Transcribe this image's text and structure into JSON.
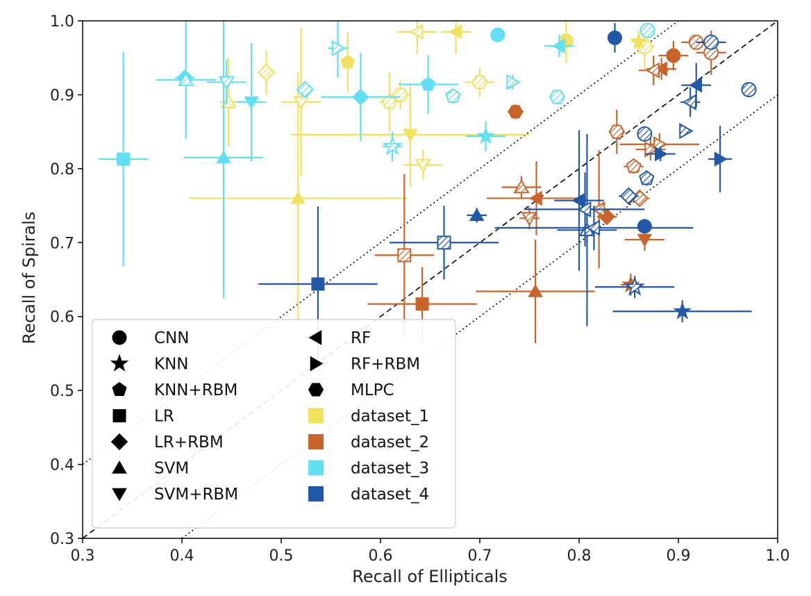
{
  "chart_data": {
    "type": "scatter",
    "title": "",
    "xlabel": "Recall of Ellipticals",
    "ylabel": "Recall of Spirals",
    "xlim": [
      0.3,
      1.0
    ],
    "ylim": [
      0.3,
      1.0
    ],
    "xticks": [
      "0.3",
      "0.4",
      "0.5",
      "0.6",
      "0.7",
      "0.8",
      "0.9",
      "1.0"
    ],
    "yticks": [
      "0.3",
      "0.4",
      "0.5",
      "0.6",
      "0.7",
      "0.8",
      "0.9",
      "1.0"
    ],
    "grid": false,
    "legend_placement": "lower-left",
    "legend_models": [
      {
        "name": "CNN",
        "marker": "circle"
      },
      {
        "name": "KNN",
        "marker": "star"
      },
      {
        "name": "KNN+RBM",
        "marker": "pentagon"
      },
      {
        "name": "LR",
        "marker": "square"
      },
      {
        "name": "LR+RBM",
        "marker": "diamond"
      },
      {
        "name": "SVM",
        "marker": "triangle-up"
      },
      {
        "name": "SVM+RBM",
        "marker": "triangle-down"
      },
      {
        "name": "RF",
        "marker": "triangle-left"
      },
      {
        "name": "RF+RBM",
        "marker": "triangle-right"
      },
      {
        "name": "MLPC",
        "marker": "hexagon"
      }
    ],
    "legend_datasets": [
      {
        "name": "dataset_1",
        "color": "#F2E060"
      },
      {
        "name": "dataset_2",
        "color": "#C8642A"
      },
      {
        "name": "dataset_3",
        "color": "#62DFF3"
      },
      {
        "name": "dataset_4",
        "color": "#2358A8"
      }
    ],
    "reference_lines": [
      {
        "style": "dashed",
        "x": [
          0.3,
          1.0
        ],
        "y": [
          0.3,
          1.0
        ]
      },
      {
        "style": "dotted",
        "x": [
          0.3,
          0.9
        ],
        "y": [
          0.4,
          1.0
        ]
      },
      {
        "style": "dotted",
        "x": [
          0.4,
          1.0
        ],
        "y": [
          0.3,
          0.9
        ]
      }
    ],
    "points": [
      {
        "dataset": "dataset_1",
        "model": "CNN",
        "hatched": false,
        "x": 0.787,
        "y": 0.973,
        "xerr": 0.0,
        "yerr": 0.03
      },
      {
        "dataset": "dataset_1",
        "model": "CNN",
        "hatched": true,
        "x": 0.866,
        "y": 0.965,
        "xerr": 0.01,
        "yerr": 0.03
      },
      {
        "dataset": "dataset_1",
        "model": "KNN",
        "hatched": false,
        "x": 0.86,
        "y": 0.972,
        "xerr": 0.008,
        "yerr": 0.015
      },
      {
        "dataset": "dataset_1",
        "model": "KNN+RBM",
        "hatched": false,
        "x": 0.567,
        "y": 0.944,
        "xerr": 0.0,
        "yerr": 0.04
      },
      {
        "dataset": "dataset_1",
        "model": "KNN+RBM",
        "hatched": true,
        "x": 0.609,
        "y": 0.89,
        "xerr": 0.01,
        "yerr": 0.04
      },
      {
        "dataset": "dataset_1",
        "model": "LR+RBM",
        "hatched": true,
        "x": 0.485,
        "y": 0.93,
        "xerr": 0.0,
        "yerr": 0.03
      },
      {
        "dataset": "dataset_1",
        "model": "SVM",
        "hatched": false,
        "x": 0.517,
        "y": 0.76,
        "xerr": 0.11,
        "yerr": 0.17
      },
      {
        "dataset": "dataset_1",
        "model": "SVM",
        "hatched": true,
        "x": 0.447,
        "y": 0.89,
        "xerr": 0.008,
        "yerr": 0.06
      },
      {
        "dataset": "dataset_1",
        "model": "SVM+RBM",
        "hatched": false,
        "x": 0.63,
        "y": 0.846,
        "xerr": 0.12,
        "yerr": 0.07
      },
      {
        "dataset": "dataset_1",
        "model": "SVM+RBM",
        "hatched": true,
        "x": 0.52,
        "y": 0.89,
        "xerr": 0.02,
        "yerr": 0.1
      },
      {
        "dataset": "dataset_1",
        "model": "SVM+RBM",
        "hatched": true,
        "x": 0.643,
        "y": 0.805,
        "xerr": 0.02,
        "yerr": 0.02
      },
      {
        "dataset": "dataset_1",
        "model": "RF",
        "hatched": false,
        "x": 0.676,
        "y": 0.985,
        "xerr": 0.015,
        "yerr": 0.03
      },
      {
        "dataset": "dataset_1",
        "model": "RF",
        "hatched": true,
        "x": 0.637,
        "y": 0.985,
        "xerr": 0.02,
        "yerr": 0.03
      },
      {
        "dataset": "dataset_1",
        "model": "MLPC",
        "hatched": true,
        "x": 0.7,
        "y": 0.917,
        "xerr": 0.015,
        "yerr": 0.02
      },
      {
        "dataset": "dataset_1",
        "model": "MLPC",
        "hatched": true,
        "x": 0.62,
        "y": 0.9,
        "xerr": 0.01,
        "yerr": 0.02
      },
      {
        "dataset": "dataset_2",
        "model": "CNN",
        "hatched": false,
        "x": 0.895,
        "y": 0.953,
        "xerr": 0.015,
        "yerr": 0.02
      },
      {
        "dataset": "dataset_2",
        "model": "CNN",
        "hatched": true,
        "x": 0.933,
        "y": 0.957,
        "xerr": 0.015,
        "yerr": 0.03
      },
      {
        "dataset": "dataset_2",
        "model": "CNN",
        "hatched": true,
        "x": 0.918,
        "y": 0.971,
        "xerr": 0.015,
        "yerr": 0.01
      },
      {
        "dataset": "dataset_2",
        "model": "KNN",
        "hatched": false,
        "x": 0.852,
        "y": 0.643,
        "xerr": 0.01,
        "yerr": 0.015
      },
      {
        "dataset": "dataset_2",
        "model": "KNN+RBM",
        "hatched": true,
        "x": 0.855,
        "y": 0.803,
        "xerr": 0.01,
        "yerr": 0.01
      },
      {
        "dataset": "dataset_2",
        "model": "LR",
        "hatched": false,
        "x": 0.642,
        "y": 0.617,
        "xerr": 0.055,
        "yerr": 0.05
      },
      {
        "dataset": "dataset_2",
        "model": "LR",
        "hatched": true,
        "x": 0.624,
        "y": 0.683,
        "xerr": 0.03,
        "yerr": 0.11
      },
      {
        "dataset": "dataset_2",
        "model": "LR+RBM",
        "hatched": true,
        "x": 0.861,
        "y": 0.76,
        "xerr": 0.01,
        "yerr": 0.01
      },
      {
        "dataset": "dataset_2",
        "model": "LR+RBM",
        "hatched": false,
        "x": 0.828,
        "y": 0.735,
        "xerr": 0.01,
        "yerr": 0.01
      },
      {
        "dataset": "dataset_2",
        "model": "SVM",
        "hatched": false,
        "x": 0.756,
        "y": 0.634,
        "xerr": 0.06,
        "yerr": 0.07
      },
      {
        "dataset": "dataset_2",
        "model": "SVM",
        "hatched": true,
        "x": 0.742,
        "y": 0.775,
        "xerr": 0.02,
        "yerr": 0.015
      },
      {
        "dataset": "dataset_2",
        "model": "SVM+RBM",
        "hatched": false,
        "x": 0.866,
        "y": 0.704,
        "xerr": 0.02,
        "yerr": 0.015
      },
      {
        "dataset": "dataset_2",
        "model": "SVM+RBM",
        "hatched": true,
        "x": 0.75,
        "y": 0.733,
        "xerr": 0.01,
        "yerr": 0.015
      },
      {
        "dataset": "dataset_2",
        "model": "RF",
        "hatched": false,
        "x": 0.883,
        "y": 0.935,
        "xerr": 0.015,
        "yerr": 0.015
      },
      {
        "dataset": "dataset_2",
        "model": "RF",
        "hatched": true,
        "x": 0.875,
        "y": 0.933,
        "xerr": 0.015,
        "yerr": 0.02
      },
      {
        "dataset": "dataset_2",
        "model": "RF",
        "hatched": false,
        "x": 0.757,
        "y": 0.76,
        "xerr": 0.05,
        "yerr": 0.05
      },
      {
        "dataset": "dataset_2",
        "model": "RF",
        "hatched": true,
        "x": 0.82,
        "y": 0.745,
        "xerr": 0.03,
        "yerr": 0.08
      },
      {
        "dataset": "dataset_2",
        "model": "RF+RBM",
        "hatched": true,
        "x": 0.881,
        "y": 0.833,
        "xerr": 0.04,
        "yerr": 0.015
      },
      {
        "dataset": "dataset_2",
        "model": "RF+RBM",
        "hatched": true,
        "x": 0.872,
        "y": 0.826,
        "xerr": 0.015,
        "yerr": 0.015
      },
      {
        "dataset": "dataset_2",
        "model": "MLPC",
        "hatched": false,
        "x": 0.736,
        "y": 0.877,
        "xerr": 0.008,
        "yerr": 0.01
      },
      {
        "dataset": "dataset_2",
        "model": "MLPC",
        "hatched": true,
        "x": 0.838,
        "y": 0.85,
        "xerr": 0.008,
        "yerr": 0.03
      },
      {
        "dataset": "dataset_3",
        "model": "CNN",
        "hatched": false,
        "x": 0.718,
        "y": 0.981,
        "xerr": 0.0,
        "yerr": 0.01
      },
      {
        "dataset": "dataset_3",
        "model": "CNN",
        "hatched": true,
        "x": 0.869,
        "y": 0.987,
        "xerr": 0.005,
        "yerr": 0.01
      },
      {
        "dataset": "dataset_3",
        "model": "KNN",
        "hatched": false,
        "x": 0.706,
        "y": 0.844,
        "xerr": 0.02,
        "yerr": 0.02
      },
      {
        "dataset": "dataset_3",
        "model": "KNN",
        "hatched": true,
        "x": 0.612,
        "y": 0.83,
        "xerr": 0.01,
        "yerr": 0.02
      },
      {
        "dataset": "dataset_3",
        "model": "KNN+RBM",
        "hatched": false,
        "x": 0.648,
        "y": 0.914,
        "xerr": 0.03,
        "yerr": 0.04
      },
      {
        "dataset": "dataset_3",
        "model": "KNN+RBM",
        "hatched": true,
        "x": 0.673,
        "y": 0.898,
        "xerr": 0.005,
        "yerr": 0.01
      },
      {
        "dataset": "dataset_3",
        "model": "LR",
        "hatched": false,
        "x": 0.341,
        "y": 0.813,
        "xerr": 0.025,
        "yerr": 0.145
      },
      {
        "dataset": "dataset_3",
        "model": "LR+RBM",
        "hatched": false,
        "x": 0.58,
        "y": 0.897,
        "xerr": 0.04,
        "yerr": 0.06
      },
      {
        "dataset": "dataset_3",
        "model": "LR+RBM",
        "hatched": false,
        "x": 0.403,
        "y": 0.923,
        "xerr": 0.01,
        "yerr": 0.01
      },
      {
        "dataset": "dataset_3",
        "model": "LR+RBM",
        "hatched": true,
        "x": 0.524,
        "y": 0.907,
        "xerr": 0.005,
        "yerr": 0.01
      },
      {
        "dataset": "dataset_3",
        "model": "SVM",
        "hatched": false,
        "x": 0.442,
        "y": 0.815,
        "xerr": 0.04,
        "yerr": 0.19
      },
      {
        "dataset": "dataset_3",
        "model": "SVM",
        "hatched": true,
        "x": 0.404,
        "y": 0.92,
        "xerr": 0.03,
        "yerr": 0.08
      },
      {
        "dataset": "dataset_3",
        "model": "SVM+RBM",
        "hatched": false,
        "x": 0.47,
        "y": 0.89,
        "xerr": 0.015,
        "yerr": 0.08
      },
      {
        "dataset": "dataset_3",
        "model": "SVM+RBM",
        "hatched": true,
        "x": 0.445,
        "y": 0.917,
        "xerr": 0.02,
        "yerr": 0.03
      },
      {
        "dataset": "dataset_3",
        "model": "RF",
        "hatched": false,
        "x": 0.78,
        "y": 0.966,
        "xerr": 0.015,
        "yerr": 0.015
      },
      {
        "dataset": "dataset_3",
        "model": "RF+RBM",
        "hatched": true,
        "x": 0.557,
        "y": 0.963,
        "xerr": 0.01,
        "yerr": 0.04
      },
      {
        "dataset": "dataset_3",
        "model": "RF+RBM",
        "hatched": true,
        "x": 0.733,
        "y": 0.917,
        "xerr": 0.005,
        "yerr": 0.01
      },
      {
        "dataset": "dataset_3",
        "model": "MLPC",
        "hatched": true,
        "x": 0.778,
        "y": 0.897,
        "xerr": 0.005,
        "yerr": 0.01
      },
      {
        "dataset": "dataset_4",
        "model": "CNN",
        "hatched": false,
        "x": 0.836,
        "y": 0.977,
        "xerr": 0.0,
        "yerr": 0.02
      },
      {
        "dataset": "dataset_4",
        "model": "CNN",
        "hatched": false,
        "x": 0.866,
        "y": 0.722,
        "xerr": 0.0,
        "yerr": 0.01
      },
      {
        "dataset": "dataset_4",
        "model": "CNN",
        "hatched": true,
        "x": 0.933,
        "y": 0.971,
        "xerr": 0.015,
        "yerr": 0.01
      },
      {
        "dataset": "dataset_4",
        "model": "CNN",
        "hatched": true,
        "x": 0.971,
        "y": 0.907,
        "xerr": 0.005,
        "yerr": 0.005
      },
      {
        "dataset": "dataset_4",
        "model": "CNN",
        "hatched": true,
        "x": 0.866,
        "y": 0.847,
        "xerr": 0.005,
        "yerr": 0.01
      },
      {
        "dataset": "dataset_4",
        "model": "KNN",
        "hatched": false,
        "x": 0.904,
        "y": 0.607,
        "xerr": 0.07,
        "yerr": 0.015
      },
      {
        "dataset": "dataset_4",
        "model": "KNN",
        "hatched": true,
        "x": 0.856,
        "y": 0.64,
        "xerr": 0.04,
        "yerr": 0.015
      },
      {
        "dataset": "dataset_4",
        "model": "KNN+RBM",
        "hatched": true,
        "x": 0.868,
        "y": 0.787,
        "xerr": 0.005,
        "yerr": 0.01
      },
      {
        "dataset": "dataset_4",
        "model": "LR",
        "hatched": false,
        "x": 0.537,
        "y": 0.644,
        "xerr": 0.06,
        "yerr": 0.105
      },
      {
        "dataset": "dataset_4",
        "model": "LR",
        "hatched": true,
        "x": 0.664,
        "y": 0.7,
        "xerr": 0.055,
        "yerr": 0.05
      },
      {
        "dataset": "dataset_4",
        "model": "LR+RBM",
        "hatched": true,
        "x": 0.85,
        "y": 0.763,
        "xerr": 0.01,
        "yerr": 0.01
      },
      {
        "dataset": "dataset_4",
        "model": "SVM",
        "hatched": false,
        "x": 0.697,
        "y": 0.737,
        "xerr": 0.01,
        "yerr": 0.01
      },
      {
        "dataset": "dataset_4",
        "model": "SVM",
        "hatched": true,
        "x": 0.808,
        "y": 0.717,
        "xerr": 0.03,
        "yerr": 0.13
      },
      {
        "dataset": "dataset_4",
        "model": "RF",
        "hatched": false,
        "x": 0.918,
        "y": 0.913,
        "xerr": 0.015,
        "yerr": 0.03
      },
      {
        "dataset": "dataset_4",
        "model": "RF",
        "hatched": true,
        "x": 0.912,
        "y": 0.89,
        "xerr": 0.01,
        "yerr": 0.02
      },
      {
        "dataset": "dataset_4",
        "model": "RF",
        "hatched": false,
        "x": 0.8,
        "y": 0.757,
        "xerr": 0.025,
        "yerr": 0.095
      },
      {
        "dataset": "dataset_4",
        "model": "RF",
        "hatched": true,
        "x": 0.806,
        "y": 0.745,
        "xerr": 0.06,
        "yerr": 0.05
      },
      {
        "dataset": "dataset_4",
        "model": "RF",
        "hatched": true,
        "x": 0.815,
        "y": 0.72,
        "xerr": 0.1,
        "yerr": 0.03
      },
      {
        "dataset": "dataset_4",
        "model": "RF+RBM",
        "hatched": false,
        "x": 0.942,
        "y": 0.813,
        "xerr": 0.012,
        "yerr": 0.045
      },
      {
        "dataset": "dataset_4",
        "model": "RF+RBM",
        "hatched": false,
        "x": 0.882,
        "y": 0.82,
        "xerr": 0.015,
        "yerr": 0.01
      },
      {
        "dataset": "dataset_4",
        "model": "RF+RBM",
        "hatched": true,
        "x": 0.907,
        "y": 0.851,
        "xerr": 0.005,
        "yerr": 0.005
      }
    ]
  }
}
